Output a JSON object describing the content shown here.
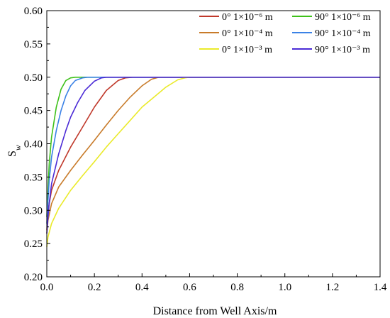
{
  "chart_data": {
    "type": "line",
    "title": "",
    "xlabel": "Distance from Well Axis/m",
    "ylabel_main": "S",
    "ylabel_sub": "w",
    "xlim": [
      0,
      1.4
    ],
    "ylim": [
      0.2,
      0.6
    ],
    "xticks": [
      "0.0",
      "0.2",
      "0.4",
      "0.6",
      "0.8",
      "1.0",
      "1.2",
      "1.4"
    ],
    "yticks": [
      "0.20",
      "0.25",
      "0.30",
      "0.35",
      "0.40",
      "0.45",
      "0.50",
      "0.55",
      "0.60"
    ],
    "grid": false,
    "legend_position": "top-right",
    "series": [
      {
        "name": "0° 1×10⁻⁶ m",
        "color": "#c0392b",
        "x": [
          0,
          0.005,
          0.02,
          0.05,
          0.1,
          0.15,
          0.2,
          0.25,
          0.3,
          0.33,
          0.36,
          0.4,
          0.6,
          1.0,
          1.4
        ],
        "y": [
          0.27,
          0.3,
          0.33,
          0.36,
          0.395,
          0.425,
          0.455,
          0.48,
          0.495,
          0.499,
          0.5,
          0.5,
          0.5,
          0.5,
          0.5
        ]
      },
      {
        "name": "90° 1×10⁻⁶ m",
        "color": "#3ec11a",
        "x": [
          0,
          0.005,
          0.01,
          0.02,
          0.04,
          0.06,
          0.08,
          0.1,
          0.12,
          0.15,
          0.3,
          0.6,
          1.0,
          1.4
        ],
        "y": [
          0.29,
          0.33,
          0.37,
          0.41,
          0.455,
          0.482,
          0.495,
          0.499,
          0.5,
          0.5,
          0.5,
          0.5,
          0.5,
          0.5
        ]
      },
      {
        "name": "0° 1×10⁻⁴ m",
        "color": "#c87b2a",
        "x": [
          0,
          0.005,
          0.02,
          0.05,
          0.1,
          0.15,
          0.2,
          0.25,
          0.3,
          0.35,
          0.4,
          0.44,
          0.47,
          0.5,
          0.7,
          1.0,
          1.4
        ],
        "y": [
          0.265,
          0.285,
          0.31,
          0.335,
          0.36,
          0.383,
          0.405,
          0.428,
          0.45,
          0.47,
          0.487,
          0.497,
          0.5,
          0.5,
          0.5,
          0.5,
          0.5
        ]
      },
      {
        "name": "90° 1×10⁻⁴ m",
        "color": "#3b82e6",
        "x": [
          0,
          0.005,
          0.01,
          0.02,
          0.04,
          0.06,
          0.08,
          0.1,
          0.12,
          0.15,
          0.17,
          0.2,
          0.4,
          0.7,
          1.0,
          1.4
        ],
        "y": [
          0.28,
          0.315,
          0.345,
          0.38,
          0.42,
          0.45,
          0.472,
          0.487,
          0.495,
          0.499,
          0.5,
          0.5,
          0.5,
          0.5,
          0.5,
          0.5
        ]
      },
      {
        "name": "0° 1×10⁻³ m",
        "color": "#eaea2a",
        "x": [
          0,
          0.005,
          0.02,
          0.05,
          0.1,
          0.15,
          0.2,
          0.25,
          0.3,
          0.35,
          0.4,
          0.45,
          0.5,
          0.55,
          0.58,
          0.6,
          0.8,
          1.0,
          1.4
        ],
        "y": [
          0.245,
          0.26,
          0.28,
          0.303,
          0.33,
          0.352,
          0.373,
          0.395,
          0.415,
          0.435,
          0.455,
          0.47,
          0.485,
          0.496,
          0.499,
          0.5,
          0.5,
          0.5,
          0.5
        ]
      },
      {
        "name": "90° 1×10⁻³ m",
        "color": "#4b2bd6",
        "x": [
          0,
          0.005,
          0.01,
          0.02,
          0.05,
          0.08,
          0.1,
          0.13,
          0.16,
          0.2,
          0.23,
          0.25,
          0.27,
          0.3,
          0.5,
          1.0,
          1.4
        ],
        "y": [
          0.265,
          0.29,
          0.31,
          0.34,
          0.385,
          0.42,
          0.44,
          0.462,
          0.48,
          0.494,
          0.499,
          0.5,
          0.5,
          0.5,
          0.5,
          0.5,
          0.5
        ]
      }
    ]
  }
}
